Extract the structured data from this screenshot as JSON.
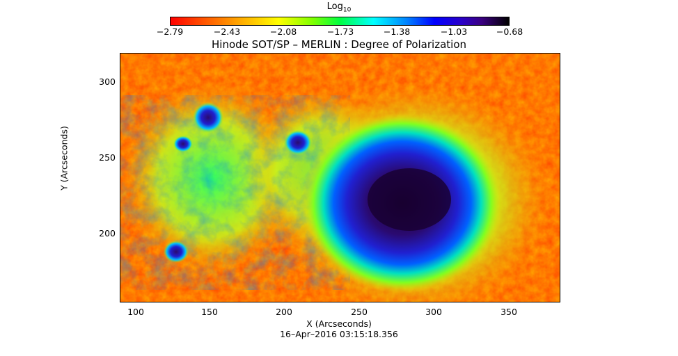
{
  "colorbar": {
    "label_main": "Log",
    "label_sub": "10",
    "ticks": [
      "−2.79",
      "−2.43",
      "−2.08",
      "−1.73",
      "−1.38",
      "−1.03",
      "−0.68"
    ]
  },
  "plot": {
    "title": "Hinode SOT/SP – MERLIN : Degree of Polarization",
    "xlabel": "X (Arcseconds)",
    "ylabel": "Y (Arcseconds)",
    "xticks": [
      "100",
      "150",
      "200",
      "250",
      "300",
      "350"
    ],
    "yticks": [
      "300",
      "250",
      "200"
    ],
    "timestamp": "16–Apr–2016 03:15:18.356"
  },
  "image": {
    "description_colors": {
      "low": "#ff3300",
      "mid": "#ffff00",
      "high": "#000033"
    }
  }
}
